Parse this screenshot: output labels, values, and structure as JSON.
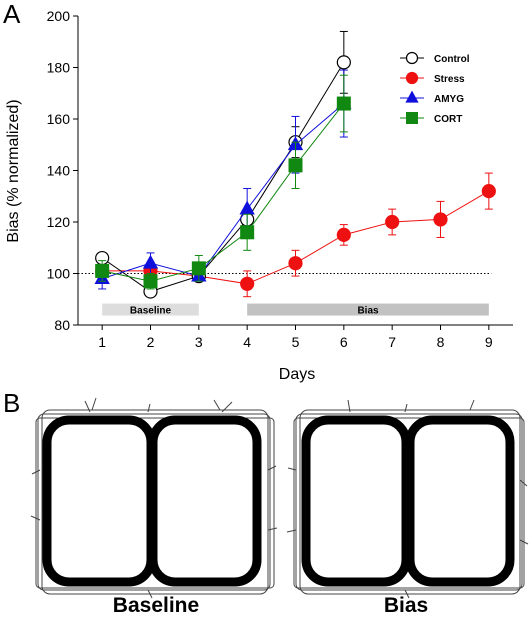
{
  "panels": {
    "a": "A",
    "b": "B"
  },
  "chart_data": {
    "type": "line",
    "xlabel": "Days",
    "ylabel": "Bias (% normalized)",
    "xticks": [
      1,
      2,
      3,
      4,
      5,
      6,
      7,
      8,
      9
    ],
    "yticks": [
      80,
      100,
      120,
      140,
      160,
      180,
      200
    ],
    "xlim": [
      0.5,
      9.5
    ],
    "ylim": [
      80,
      200
    ],
    "reference_line": 100,
    "legend_position": "top-right",
    "periods": [
      {
        "label": "Baseline",
        "start": 1,
        "end": 3,
        "color": "#dddddd"
      },
      {
        "label": "Bias",
        "start": 4,
        "end": 9,
        "color": "#c2c2c2"
      }
    ],
    "series": [
      {
        "name": "Control",
        "marker": "circle-open",
        "color": "#000000",
        "fill": "#ffffff",
        "x": [
          1,
          2,
          3,
          4,
          5,
          6
        ],
        "y": [
          106,
          93,
          99,
          121,
          151,
          182
        ],
        "err": [
          2,
          2,
          2,
          4,
          6,
          12
        ]
      },
      {
        "name": "Stress",
        "marker": "circle",
        "color": "#ee1111",
        "fill": "#ee1111",
        "x": [
          1,
          2,
          3,
          4,
          5,
          6,
          7,
          8,
          9
        ],
        "y": [
          101,
          101,
          99,
          96,
          104,
          115,
          120,
          121,
          132
        ],
        "err": [
          3,
          3,
          2,
          5,
          5,
          4,
          5,
          7,
          7
        ]
      },
      {
        "name": "AMYG",
        "marker": "triangle",
        "color": "#1010dd",
        "fill": "#1010dd",
        "x": [
          1,
          2,
          3,
          4,
          5,
          6
        ],
        "y": [
          98,
          104,
          99,
          125,
          150,
          166
        ],
        "err": [
          4,
          4,
          2,
          8,
          11,
          13
        ]
      },
      {
        "name": "CORT",
        "marker": "square",
        "color": "#118811",
        "fill": "#118811",
        "x": [
          1,
          2,
          3,
          4,
          5,
          6
        ],
        "y": [
          101,
          97,
          102,
          116,
          142,
          166
        ],
        "err": [
          4,
          3,
          5,
          7,
          9,
          11
        ]
      }
    ]
  },
  "tracks": [
    {
      "caption": "Baseline"
    },
    {
      "caption": "Bias"
    }
  ]
}
